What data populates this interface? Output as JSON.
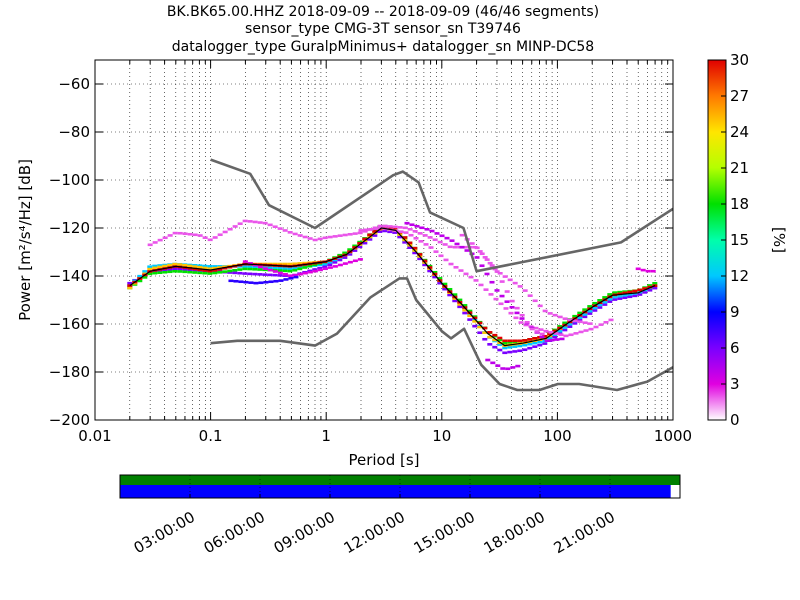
{
  "chart_data": {
    "type": "heatmap",
    "title": [
      "BK.BK65.00.HHZ   2018-09-09 -- 2018-09-09  (46/46 segments)",
      "sensor_type CMG-3T sensor_sn T39746",
      "datalogger_type GuralpMinimus+ datalogger_sn MINP-DC58"
    ],
    "xlabel": "Period [s]",
    "ylabel": "Power [m²/s⁴/Hz] [dB]",
    "x_scale": "log",
    "xlim": [
      0.01,
      1000
    ],
    "ylim": [
      -200,
      -50
    ],
    "x_ticks": [
      0.01,
      0.1,
      1,
      10,
      100,
      1000
    ],
    "x_tick_labels": [
      "0.01",
      "0.1",
      "1",
      "10",
      "100",
      "1000"
    ],
    "y_ticks": [
      -200,
      -180,
      -160,
      -140,
      -120,
      -100,
      -80,
      -60
    ],
    "y_tick_labels": [
      "−200",
      "−180",
      "−160",
      "−140",
      "−120",
      "−100",
      "−80",
      "−60"
    ],
    "grid": true,
    "colorbar": {
      "label": "[%]",
      "range": [
        0,
        30
      ],
      "ticks": [
        0,
        3,
        6,
        9,
        12,
        15,
        18,
        21,
        24,
        27,
        30
      ]
    },
    "noise_model_high": {
      "name": "NHNM",
      "x": [
        0.1,
        0.22,
        0.32,
        0.8,
        3.8,
        4.6,
        6.3,
        7.9,
        15.4,
        20,
        354.8,
        1000
      ],
      "y": [
        -91.5,
        -97.4,
        -110.5,
        -120,
        -98,
        -96.5,
        -101,
        -113.5,
        -120,
        -138,
        -126,
        -112
      ]
    },
    "noise_model_low": {
      "name": "NLNM",
      "x": [
        0.1,
        0.17,
        0.4,
        0.8,
        1.24,
        2.4,
        4.3,
        5,
        6,
        10,
        12,
        15.6,
        21.9,
        31.6,
        45,
        70,
        101,
        154,
        328,
        600,
        1000
      ],
      "y": [
        -168,
        -167,
        -167,
        -169,
        -164,
        -149,
        -141,
        -141,
        -150,
        -163,
        -166,
        -162,
        -177,
        -185,
        -187.5,
        -187.5,
        -185,
        -185,
        -187.5,
        -184,
        -178
      ]
    },
    "mode_line": {
      "name": "mode",
      "x": [
        0.02,
        0.03,
        0.05,
        0.1,
        0.2,
        0.5,
        1,
        1.5,
        2.5,
        3,
        4,
        6,
        10,
        15,
        25,
        35,
        50,
        80,
        120,
        200,
        300,
        500,
        700
      ],
      "y": [
        -144,
        -138,
        -136,
        -137.5,
        -135,
        -136,
        -134,
        -131,
        -123,
        -120,
        -121,
        -130,
        -143,
        -152,
        -164,
        -169,
        -168,
        -166,
        -160,
        -153,
        -148,
        -147,
        -144
      ]
    },
    "probability_curves": [
      {
        "pct": 6,
        "x": [
          0.02,
          0.03,
          0.05,
          0.1,
          0.2,
          0.5,
          1,
          1.5,
          2.5,
          3,
          4,
          6,
          10,
          15,
          25,
          35,
          50,
          80,
          120,
          200,
          300,
          500,
          700
        ],
        "y": [
          -143,
          -138,
          -137,
          -138,
          -139,
          -140,
          -136,
          -132,
          -124,
          -121,
          -122,
          -131,
          -144,
          -154,
          -168,
          -172,
          -171,
          -168,
          -162,
          -155,
          -150,
          -148,
          -145
        ]
      },
      {
        "pct": 12,
        "x": [
          0.02,
          0.03,
          0.05,
          0.1,
          0.2,
          0.5,
          1,
          1.5,
          2.5,
          3,
          4,
          6,
          10,
          15,
          25,
          35,
          50,
          80,
          120,
          200,
          300,
          500,
          700
        ],
        "y": [
          -144,
          -136,
          -135,
          -136,
          -136,
          -137,
          -135,
          -131,
          -123,
          -120,
          -121,
          -130,
          -143,
          -152,
          -165,
          -170,
          -169,
          -167,
          -161,
          -154,
          -149,
          -147,
          -144
        ]
      },
      {
        "pct": 18,
        "x": [
          0.02,
          0.03,
          0.05,
          0.1,
          0.2,
          0.5,
          1,
          1.5,
          2.5,
          3,
          4,
          6,
          10,
          15,
          25,
          35,
          50,
          80,
          120,
          200,
          300,
          500,
          700
        ],
        "y": [
          -145,
          -139,
          -138,
          -139,
          -137,
          -138,
          -134,
          -130,
          -122,
          -119,
          -120,
          -129,
          -142,
          -151,
          -163,
          -168,
          -167,
          -165,
          -159,
          -152,
          -147,
          -146,
          -143
        ]
      },
      {
        "pct": 25,
        "x": [
          0.02,
          0.03,
          0.05,
          0.1,
          0.2,
          0.5,
          1,
          1.5,
          2.5,
          3,
          4,
          6,
          10,
          15,
          25,
          35,
          50,
          80,
          120,
          200,
          300,
          500,
          700
        ],
        "y": [
          -145,
          -137,
          -135,
          -137,
          -135,
          -135,
          -134,
          -131,
          -123,
          -120,
          -121,
          -130,
          -143,
          -153,
          -165,
          -169,
          -168,
          -166,
          -160,
          -153,
          -148,
          -146,
          -144
        ]
      },
      {
        "pct": 30,
        "x": [
          0.02,
          0.03,
          0.05,
          0.1,
          0.2,
          0.5,
          1,
          1.5,
          2.5,
          3,
          4,
          6,
          10,
          15,
          25,
          35,
          50,
          80,
          120,
          200,
          300,
          500,
          700
        ],
        "y": [
          -144,
          -138,
          -136,
          -138,
          -135,
          -136,
          -134,
          -131,
          -122,
          -120,
          -120,
          -129,
          -143,
          -152,
          -163,
          -167,
          -167,
          -165,
          -160,
          -153,
          -148,
          -146,
          -144
        ]
      },
      {
        "pct": 2,
        "x": [
          0.03,
          0.05,
          0.08,
          0.1,
          0.2,
          0.3,
          0.5,
          0.8,
          1,
          2,
          3,
          5,
          8,
          12,
          20,
          30,
          50,
          80,
          120,
          200
        ],
        "y": [
          -127,
          -122,
          -123,
          -125,
          -117,
          -118,
          -122,
          -125,
          -124,
          -122,
          -119,
          -120,
          -124,
          -128,
          -128,
          -138,
          -145,
          -155,
          -158,
          -160
        ]
      },
      {
        "pct": 2,
        "x": [
          2,
          3,
          5,
          8,
          12,
          20,
          30,
          50,
          80,
          120,
          200,
          300
        ],
        "y": [
          -121,
          -120,
          -122,
          -128,
          -135,
          -142,
          -150,
          -160,
          -163,
          -165,
          -162,
          -158
        ]
      },
      {
        "pct": 4,
        "x": [
          5,
          8,
          12,
          20,
          30,
          50,
          80,
          120
        ],
        "y": [
          -118,
          -121,
          -125,
          -132,
          -146,
          -158,
          -167,
          -166
        ]
      },
      {
        "pct": 2,
        "x": [
          15,
          20,
          30,
          40,
          60,
          80
        ],
        "y": [
          -123,
          -128,
          -138,
          -150,
          -162,
          -165
        ]
      },
      {
        "pct": 3,
        "x": [
          0.2,
          0.3,
          0.5,
          0.8,
          1.2,
          2
        ],
        "y": [
          -134,
          -137,
          -140,
          -138,
          -136,
          -133
        ]
      },
      {
        "pct": 8,
        "x": [
          0.15,
          0.25,
          0.4,
          0.6
        ],
        "y": [
          -142,
          -143,
          -142,
          -140
        ]
      },
      {
        "pct": 3,
        "x": [
          500,
          600,
          700
        ],
        "y": [
          -137,
          -138,
          -138
        ]
      },
      {
        "pct": 4,
        "x": [
          25,
          35,
          50
        ],
        "y": [
          -175,
          -179,
          -177
        ]
      }
    ],
    "timeline": {
      "tick_labels": [
        "03:00:00",
        "06:00:00",
        "09:00:00",
        "12:00:00",
        "15:00:00",
        "18:00:00",
        "21:00:00"
      ],
      "tick_hours": [
        3,
        6,
        9,
        12,
        15,
        18,
        21
      ],
      "hours_total": 24,
      "coverage_hours": [
        0,
        24
      ],
      "data_hours": [
        0,
        23.6
      ],
      "coverage_color": "#008000",
      "data_color": "#0000ff"
    }
  }
}
